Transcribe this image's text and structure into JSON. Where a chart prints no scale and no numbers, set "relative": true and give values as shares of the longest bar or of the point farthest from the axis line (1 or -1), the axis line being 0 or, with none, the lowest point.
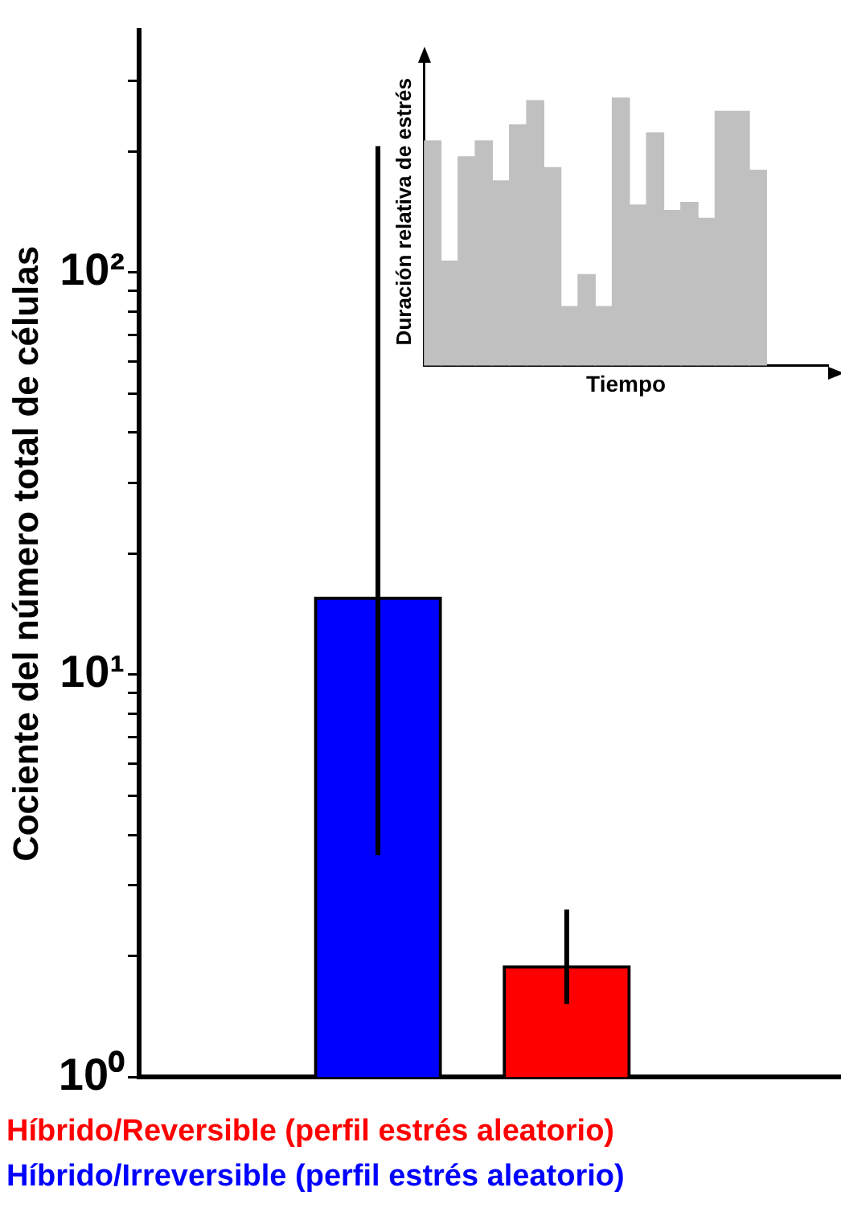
{
  "chart_data": [
    {
      "type": "bar",
      "ylabel": "Cociente del número total de células",
      "categories": [
        null,
        null
      ],
      "series": [
        {
          "name": "Híbrido/Reversible (perfil estrés aleatorio)",
          "color": "#ff0000",
          "values": [
            null,
            1.89
          ],
          "errors": [
            null,
            [
              1.52,
              2.61
            ]
          ]
        },
        {
          "name": "Híbrido/Irreversible (perfil estrés aleatorio)",
          "color": "#0000ff",
          "values": [
            15.6,
            null
          ],
          "errors": [
            [
              3.56,
              206
            ],
            null
          ]
        }
      ],
      "log": "y",
      "ylim": [
        1,
        400
      ],
      "yticks": [
        {
          "value": 1,
          "label": "10⁰"
        },
        {
          "value": 2,
          "label": null
        },
        {
          "value": 3,
          "label": null
        },
        {
          "value": 4,
          "label": null
        },
        {
          "value": 5,
          "label": null
        },
        {
          "value": 6,
          "label": null
        },
        {
          "value": 7,
          "label": null
        },
        {
          "value": 8,
          "label": null
        },
        {
          "value": 9,
          "label": null
        },
        {
          "value": 10,
          "label": "10¹"
        },
        {
          "value": 20,
          "label": null
        },
        {
          "value": 30,
          "label": null
        },
        {
          "value": 40,
          "label": null
        },
        {
          "value": 50,
          "label": null
        },
        {
          "value": 60,
          "label": null
        },
        {
          "value": 70,
          "label": null
        },
        {
          "value": 80,
          "label": null
        },
        {
          "value": 90,
          "label": null
        },
        {
          "value": 100,
          "label": "10²"
        },
        {
          "value": 200,
          "label": null
        },
        {
          "value": 300,
          "label": null
        }
      ],
      "grid": false,
      "legend": "bottom"
    },
    {
      "type": "bar",
      "relative": true,
      "xlabel": "Tiempo",
      "ylabel": "Duración relativa de estrés",
      "color": "#c0c0c0",
      "categories": [
        null,
        null,
        null,
        null,
        null,
        null,
        null,
        null,
        null,
        null,
        null,
        null,
        null,
        null,
        null,
        null,
        null,
        null,
        null,
        null
      ],
      "values": [
        0.84,
        0.39,
        0.78,
        0.84,
        0.69,
        0.9,
        0.99,
        0.74,
        0.22,
        0.34,
        0.22,
        1.0,
        0.6,
        0.87,
        0.58,
        0.61,
        0.55,
        0.95,
        0.95,
        0.73
      ]
    }
  ]
}
